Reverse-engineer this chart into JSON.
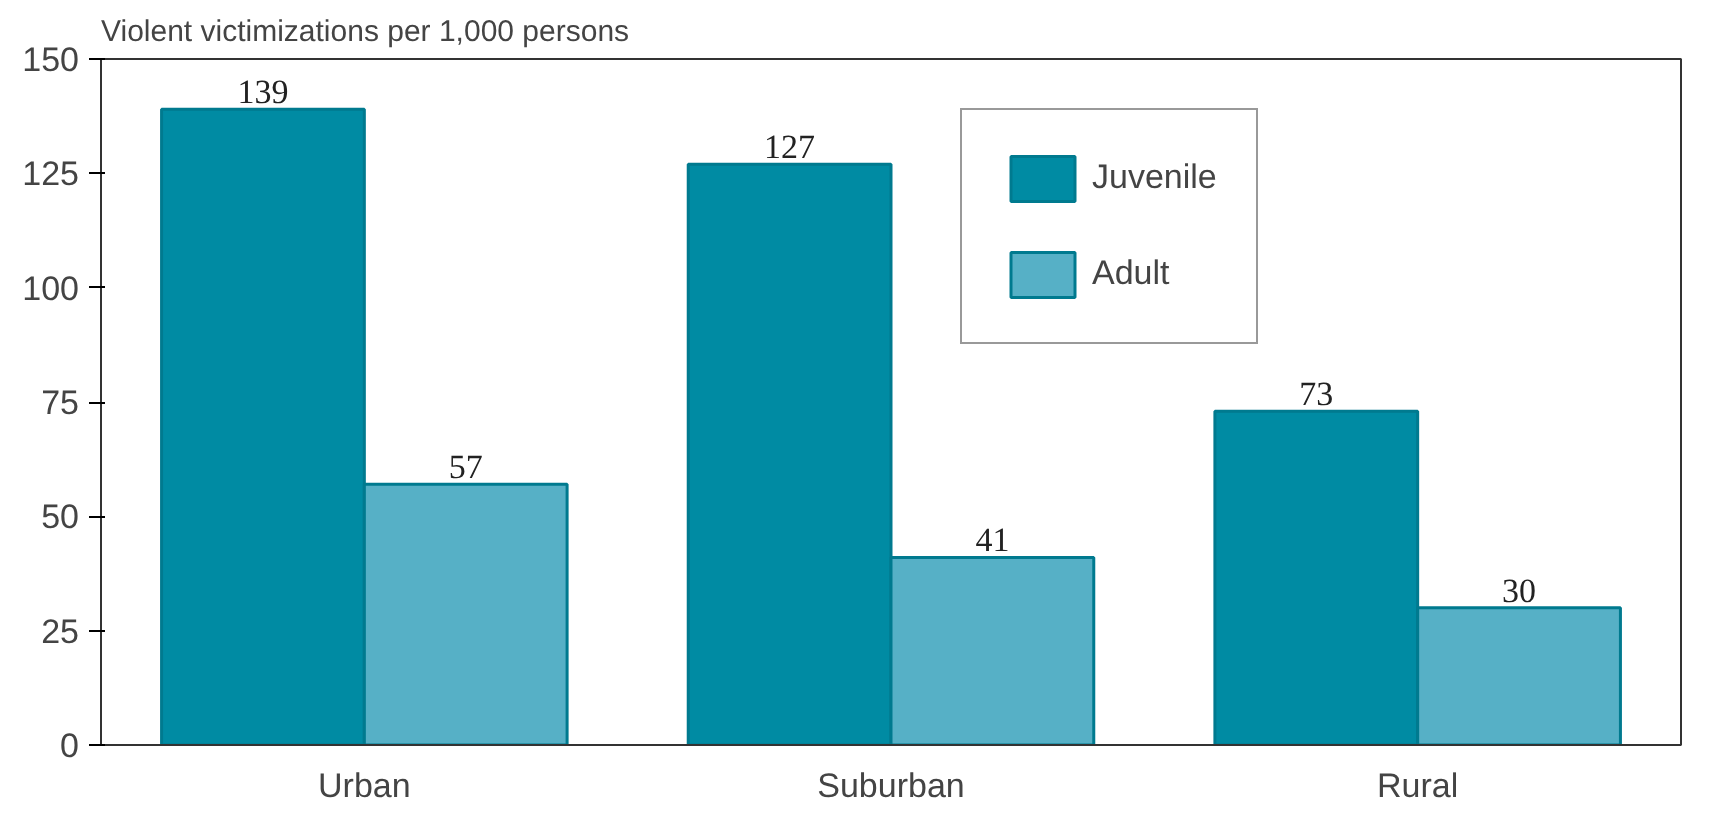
{
  "chart_data": {
    "type": "bar",
    "ylabel": "Violent victimizations per 1,000 persons",
    "categories": [
      "Urban",
      "Suburban",
      "Rural"
    ],
    "series": [
      {
        "name": "Juvenile",
        "color": "#008ba3",
        "values": [
          139,
          127,
          73
        ]
      },
      {
        "name": "Adult",
        "color": "#56b0c6",
        "values": [
          57,
          41,
          30
        ]
      }
    ],
    "ylim": [
      0,
      150
    ],
    "yticks": [
      0,
      25,
      50,
      75,
      100,
      125,
      150
    ],
    "grid": false,
    "legend": "top right",
    "data_labels": true
  }
}
